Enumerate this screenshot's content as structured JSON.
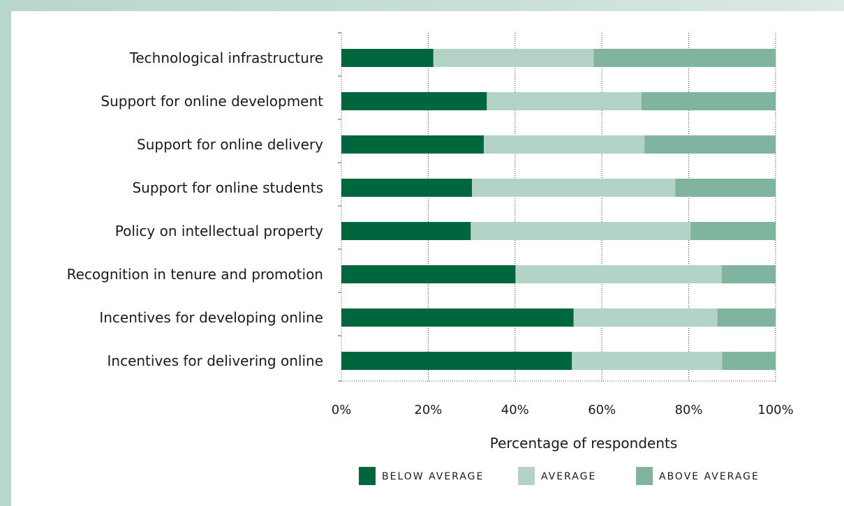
{
  "chart_data": {
    "type": "bar",
    "orientation": "horizontal",
    "stacked": true,
    "percent": true,
    "categories": [
      "Technological infrastructure",
      "Support for online development",
      "Support for online delivery",
      "Support for online students",
      "Policy on intellectual property",
      "Recognition in tenure and promotion",
      "Incentives for developing online",
      "Incentives for delivering online"
    ],
    "series": [
      {
        "name": "BELOW AVERAGE",
        "color": "#00663e",
        "values": [
          21.2,
          33.5,
          32.8,
          30.1,
          29.8,
          40.1,
          53.5,
          53.1
        ]
      },
      {
        "name": "AVERAGE",
        "color": "#b3d3c6",
        "values": [
          36.9,
          35.6,
          37.0,
          46.8,
          50.6,
          47.5,
          33.1,
          34.6
        ]
      },
      {
        "name": "ABOVE AVERAGE",
        "color": "#80b49e",
        "values": [
          41.9,
          30.9,
          30.2,
          23.1,
          19.6,
          12.4,
          13.4,
          12.3
        ]
      }
    ],
    "xlim": [
      0,
      100
    ],
    "xticks": [
      "0%",
      "20%",
      "40%",
      "60%",
      "80%",
      "100%"
    ],
    "xlabel": "Percentage of respondents",
    "ylabel": "",
    "title": "",
    "grid": "vertical dotted",
    "legend": "bottom"
  }
}
